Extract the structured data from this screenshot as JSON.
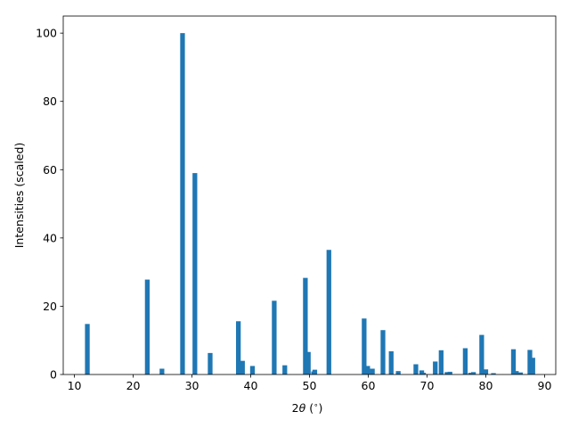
{
  "chart_data": {
    "type": "bar",
    "title": "",
    "xlabel_prefix": "2",
    "xlabel_symbol": "θ",
    "xlabel_suffix": " (",
    "xlabel_degree": "∘",
    "xlabel_close": ")",
    "ylabel": "Intensities (scaled)",
    "xlim": [
      8.1,
      91.9
    ],
    "ylim": [
      0,
      105
    ],
    "xticks": [
      10,
      20,
      30,
      40,
      50,
      60,
      70,
      80,
      90
    ],
    "yticks": [
      0,
      20,
      40,
      60,
      80,
      100
    ],
    "bar_width": 0.8,
    "bar_color": "#1f77b4",
    "grid": false,
    "x": [
      12.2,
      22.4,
      24.9,
      28.4,
      30.5,
      33.1,
      37.9,
      38.6,
      40.3,
      44.0,
      45.8,
      49.3,
      49.8,
      50.7,
      50.9,
      53.3,
      59.3,
      59.9,
      60.7,
      62.5,
      63.9,
      65.1,
      68.1,
      69.1,
      69.4,
      71.4,
      72.4,
      73.4,
      73.9,
      76.5,
      77.4,
      77.9,
      79.3,
      80.0,
      81.3,
      84.7,
      85.2,
      85.9,
      87.5,
      88.0
    ],
    "values": [
      14.8,
      27.8,
      1.7,
      100.0,
      59.0,
      6.3,
      15.6,
      4.0,
      2.5,
      21.6,
      2.7,
      28.3,
      6.6,
      0.9,
      1.4,
      36.5,
      16.4,
      2.5,
      1.7,
      13.0,
      6.8,
      1.0,
      3.0,
      1.2,
      0.5,
      3.8,
      7.1,
      0.7,
      0.8,
      7.7,
      0.5,
      0.7,
      11.6,
      1.5,
      0.4,
      7.4,
      1.0,
      0.6,
      7.2,
      4.9
    ]
  }
}
